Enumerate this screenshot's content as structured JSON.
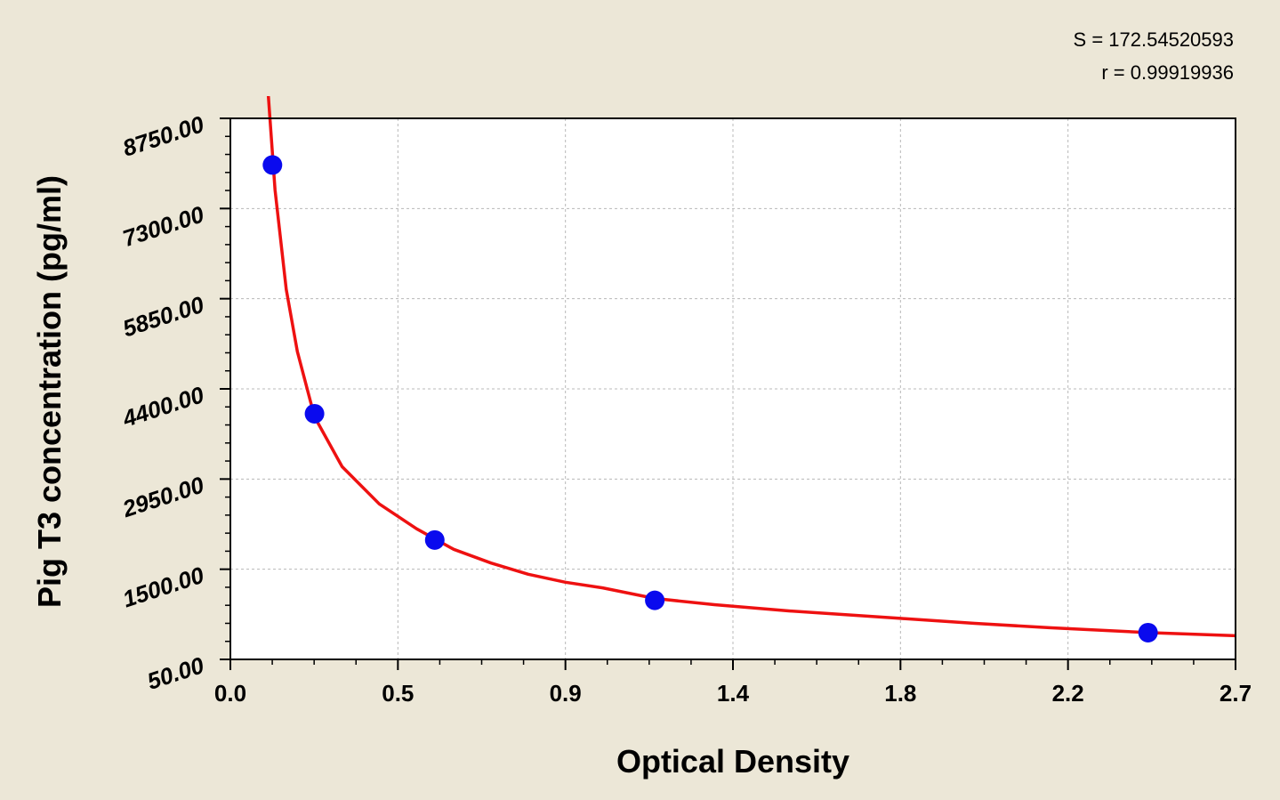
{
  "stats": {
    "s_line": "S = 172.54520593",
    "r_line": "r = 0.99919936"
  },
  "colors": {
    "background": "#ECE7D7",
    "plot_area": "#FFFFFF",
    "grid": "#B8B8B8",
    "curve": "#EE1111",
    "points": "#0A0AEE"
  },
  "chart_data": {
    "type": "scatter",
    "xlabel": "Optical Density",
    "ylabel": "Pig T3 concentration (pg/ml)",
    "xlim": [
      0.0,
      2.7
    ],
    "ylim": [
      50.0,
      8750.0
    ],
    "x_ticks": [
      "0.0",
      "0.5",
      "0.9",
      "1.4",
      "1.8",
      "2.2",
      "2.7"
    ],
    "x_tick_values": [
      0.0,
      0.45,
      0.9,
      1.35,
      1.8,
      2.25,
      2.7
    ],
    "y_ticks": [
      "50.00",
      "1500.00",
      "2950.00",
      "4400.00",
      "5850.00",
      "7300.00",
      "8750.00"
    ],
    "y_tick_values": [
      50,
      1500,
      2950,
      4400,
      5850,
      7300,
      8750
    ],
    "grid": true,
    "points": [
      {
        "x": 0.113,
        "y": 8000
      },
      {
        "x": 0.226,
        "y": 4000
      },
      {
        "x": 0.549,
        "y": 1970
      },
      {
        "x": 1.14,
        "y": 1000
      },
      {
        "x": 2.465,
        "y": 480
      }
    ],
    "curve": [
      {
        "x": 0.101,
        "y": 9190
      },
      {
        "x": 0.12,
        "y": 7600
      },
      {
        "x": 0.15,
        "y": 6000
      },
      {
        "x": 0.18,
        "y": 5000
      },
      {
        "x": 0.226,
        "y": 3950
      },
      {
        "x": 0.3,
        "y": 3150
      },
      {
        "x": 0.4,
        "y": 2550
      },
      {
        "x": 0.5,
        "y": 2150
      },
      {
        "x": 0.6,
        "y": 1820
      },
      {
        "x": 0.7,
        "y": 1600
      },
      {
        "x": 0.8,
        "y": 1420
      },
      {
        "x": 0.9,
        "y": 1290
      },
      {
        "x": 1.0,
        "y": 1200
      },
      {
        "x": 1.14,
        "y": 1030
      },
      {
        "x": 1.3,
        "y": 930
      },
      {
        "x": 1.5,
        "y": 830
      },
      {
        "x": 1.8,
        "y": 710
      },
      {
        "x": 2.0,
        "y": 630
      },
      {
        "x": 2.2,
        "y": 560
      },
      {
        "x": 2.465,
        "y": 480
      },
      {
        "x": 2.7,
        "y": 430
      }
    ]
  }
}
